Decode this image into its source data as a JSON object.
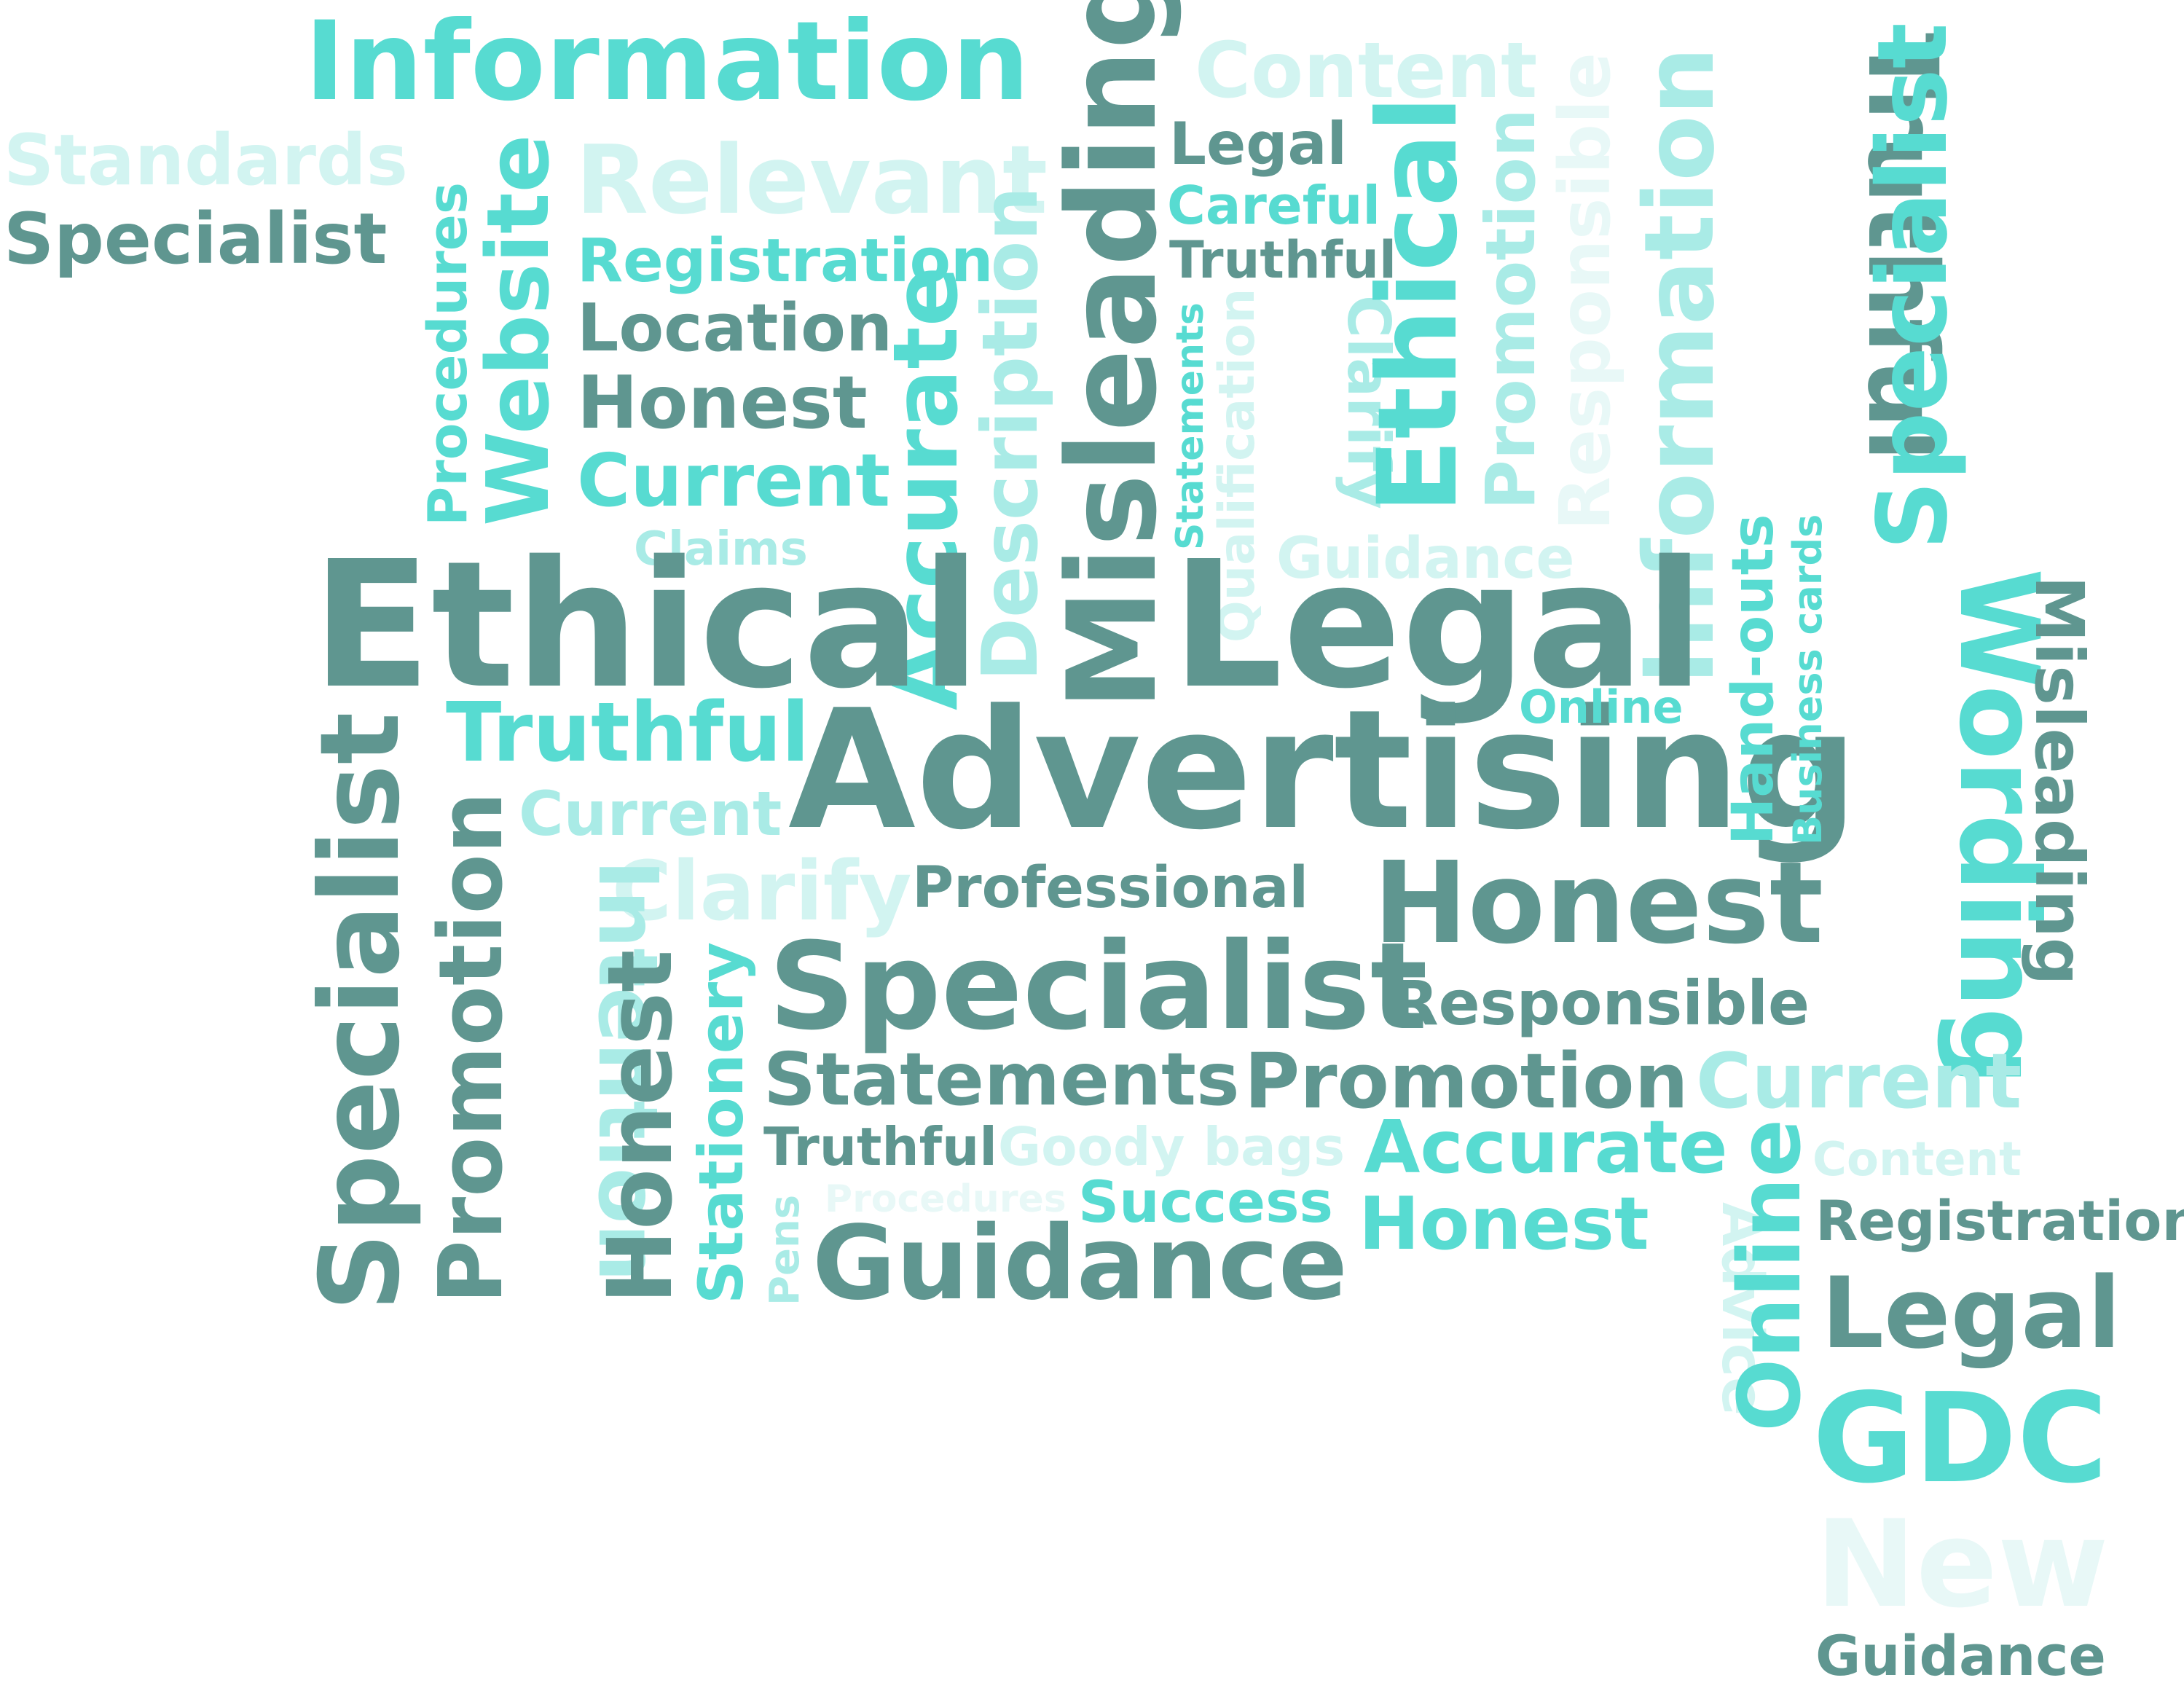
{
  "palette": {
    "dark": "#5f9690",
    "medium": "#57dbd1",
    "light": "#a9ebe6",
    "very_light": "#d2f4f1",
    "ghost": "#e8f8f7",
    "background": "#ffffff"
  },
  "words": [
    "Information",
    "Content",
    "Standards",
    "Specialist",
    "Relevant",
    "Legal",
    "Careful",
    "Truthful",
    "Registration",
    "Location",
    "Honest",
    "Current",
    "Claims",
    "Procedures",
    "Website",
    "Accurate",
    "Description",
    "Misleading",
    "Statements",
    "Qualification",
    "Clarify",
    "Guidance",
    "Ethical",
    "Promotion",
    "Responsible",
    "Information",
    "Truthful",
    "Specialist",
    "Ethical",
    "Legal",
    "Advertising",
    "Truthful",
    "Online",
    "Hand-outs",
    "Business cards",
    "Wording",
    "Misleading",
    "Current",
    "Clarify",
    "Professional",
    "Honest",
    "Specialist",
    "Promotion",
    "Intention",
    "Honest",
    "Stationery",
    "Specialist",
    "Responsible",
    "Statements",
    "Promotion",
    "Current",
    "Truthful",
    "Goody bags",
    "Accurate",
    "Content",
    "Pens",
    "Procedures",
    "Success",
    "Honest",
    "Advice",
    "Online",
    "Registration",
    "Guidance",
    "Legal",
    "GDC",
    "New",
    "Guidance"
  ]
}
